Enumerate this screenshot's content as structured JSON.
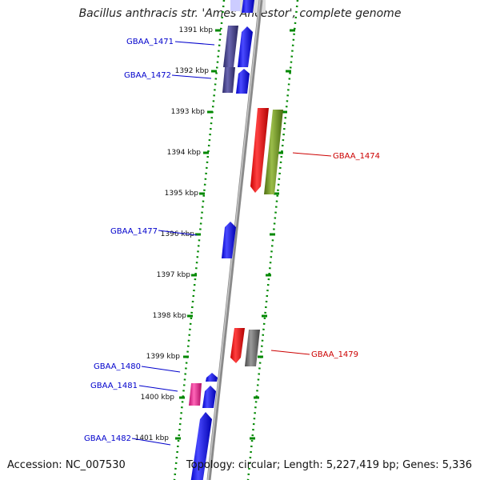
{
  "title": "Bacillus anthracis str. 'Ames Ancestor', complete genome",
  "accession": "Accession: NC_007530",
  "summary": "Topology: circular; Length: 5,227,419 bp; Genes: 5,336",
  "kbp_ticks": [
    "1391 kbp",
    "1392 kbp",
    "1393 kbp",
    "1394 kbp",
    "1395 kbp",
    "1396 kbp",
    "1397 kbp",
    "1398 kbp",
    "1399 kbp",
    "1400 kbp",
    "1401 kbp"
  ],
  "gene_labels": [
    {
      "label": "GBAA_1471",
      "color": "#0000cc"
    },
    {
      "label": "GBAA_1472",
      "color": "#0000cc"
    },
    {
      "label": "GBAA_1474",
      "color": "#cc0000"
    },
    {
      "label": "GBAA_1477",
      "color": "#0000cc"
    },
    {
      "label": "GBAA_1479",
      "color": "#cc0000"
    },
    {
      "label": "GBAA_1480",
      "color": "#0000cc"
    },
    {
      "label": "GBAA_1481",
      "color": "#0000cc"
    },
    {
      "label": "GBAA_1482",
      "color": "#0000cc"
    }
  ],
  "colors": {
    "backbone": "#8a8a8a",
    "dotted_track": "#008800",
    "forward_gene": "#0000ee",
    "reverse_gene": "#ee0000",
    "dark_gene": "#3d3a7a",
    "olive_gene": "#6b8e23",
    "gray_gene": "#666666",
    "pink_gene": "#e0208a"
  }
}
